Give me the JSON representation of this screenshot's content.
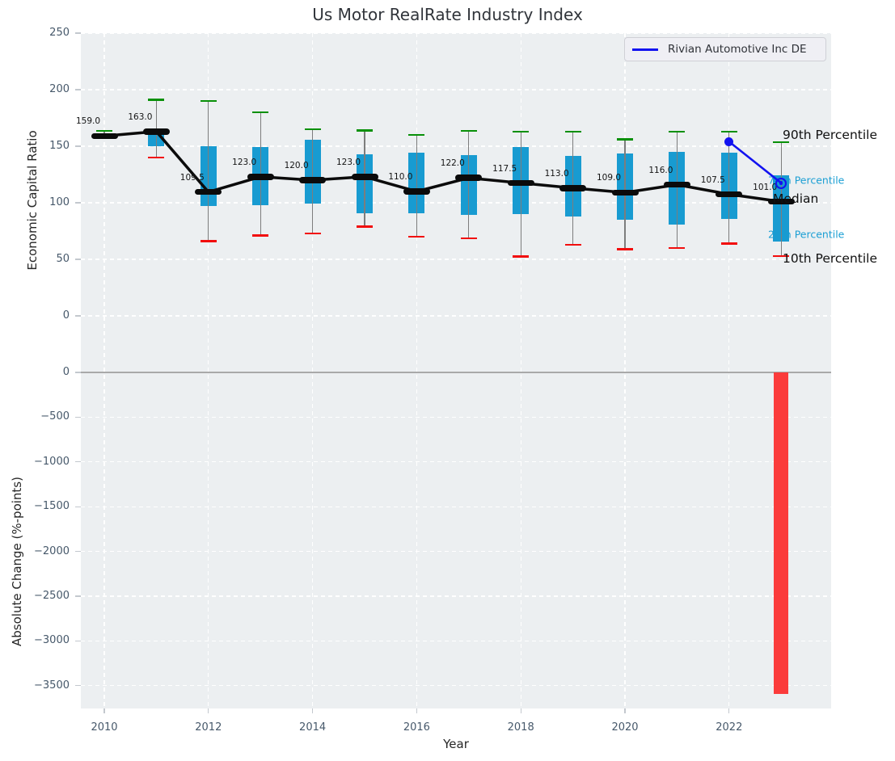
{
  "title": "Us Motor RealRate Industry Index",
  "legend": {
    "label": "Rivian Automotive Inc DE",
    "line_color": "#1212f0"
  },
  "axes": {
    "xlabel": "Year",
    "ylabel_top": "Economic Capital Ratio",
    "ylabel_bottom": "Absolute Change (%-points)",
    "x_ticks": [
      {
        "value": 2010,
        "label": "2010"
      },
      {
        "value": 2012,
        "label": "2012"
      },
      {
        "value": 2014,
        "label": "2014"
      },
      {
        "value": 2016,
        "label": "2016"
      },
      {
        "value": 2018,
        "label": "2018"
      },
      {
        "value": 2020,
        "label": "2020"
      },
      {
        "value": 2022,
        "label": "2022"
      }
    ],
    "top_y_ticks": [
      {
        "value": 0,
        "label": "0"
      },
      {
        "value": 50,
        "label": "50"
      },
      {
        "value": 100,
        "label": "100"
      },
      {
        "value": 150,
        "label": "150"
      },
      {
        "value": 200,
        "label": "200"
      },
      {
        "value": 250,
        "label": "250"
      }
    ],
    "bottom_y_ticks": [
      {
        "value": 0,
        "label": "0"
      },
      {
        "value": -500,
        "label": "−500"
      },
      {
        "value": -1000,
        "label": "−1000"
      },
      {
        "value": -1500,
        "label": "−1500"
      },
      {
        "value": -2000,
        "label": "−2000"
      },
      {
        "value": -2500,
        "label": "−2500"
      },
      {
        "value": -3000,
        "label": "−3000"
      },
      {
        "value": -3500,
        "label": "−3500"
      }
    ]
  },
  "annotations": {
    "p90": "90th Percentile",
    "p75": "75th Percentile",
    "median": "Median",
    "p25": "25th Percentile",
    "p10": "10th Percentile"
  },
  "colors": {
    "background_plot": "#eceff1",
    "grid": "#ffffff",
    "box": "#189bd1",
    "whisker": "#7d7d7d",
    "cap_high": "#089008",
    "cap_low": "#f20d0d",
    "median_line": "#0b0b0b",
    "rivian_line": "#1212f0",
    "bar_negative": "#fb3b3b",
    "annotation_percentile": "#1b9fd4",
    "tick_text": "#46586a",
    "zero_line": "#a9a9a9"
  },
  "chart_data": [
    {
      "type": "line",
      "variant": "median-line-with-percentile-box-whiskers",
      "title": "Us Motor RealRate Industry Index",
      "ylabel": "Economic Capital Ratio",
      "ylim": [
        -46,
        250
      ],
      "x": [
        2010,
        2011,
        2012,
        2013,
        2014,
        2015,
        2016,
        2017,
        2018,
        2019,
        2020,
        2021,
        2022,
        2023
      ],
      "series": [
        {
          "name": "Median",
          "values": [
            159,
            163,
            109.5,
            123,
            120,
            123,
            110,
            122,
            117.5,
            113,
            109,
            116,
            107.5,
            101
          ]
        },
        {
          "name": "90th Percentile",
          "values": [
            163.5,
            191,
            190,
            180,
            165,
            164,
            160,
            163.5,
            163,
            163,
            156,
            163,
            163,
            153.5
          ]
        },
        {
          "name": "75th Percentile",
          "values": [
            161,
            163,
            150,
            149.5,
            155.5,
            143,
            144.5,
            142,
            149.5,
            141.5,
            143.5,
            145,
            144,
            124.5
          ]
        },
        {
          "name": "25th Percentile",
          "values": [
            158,
            150,
            97,
            97.5,
            99.5,
            90.5,
            91,
            89.5,
            90,
            87.5,
            85,
            80.5,
            86,
            65.5
          ]
        },
        {
          "name": "10th Percentile",
          "values": [
            157.5,
            140,
            66,
            71,
            73,
            79,
            70,
            68.5,
            52.5,
            63,
            59,
            60,
            64,
            53
          ]
        },
        {
          "name": "Rivian Automotive Inc DE",
          "x": [
            2022,
            2023
          ],
          "values": [
            154,
            117.5
          ]
        }
      ],
      "point_labels": [
        "159.0",
        "163.0",
        "109.5",
        "123.0",
        "120.0",
        "123.0",
        "110.0",
        "122.0",
        "117.5",
        "113.0",
        "109.0",
        "116.0",
        "107.5",
        "101.0"
      ],
      "legend_position": "upper right",
      "grid": true
    },
    {
      "type": "bar",
      "ylabel": "Absolute Change (%-points)",
      "xlabel": "Year",
      "ylim": [
        -3750,
        50
      ],
      "bars": [
        {
          "x": 2023,
          "value": -3590
        }
      ],
      "grid": true
    }
  ]
}
